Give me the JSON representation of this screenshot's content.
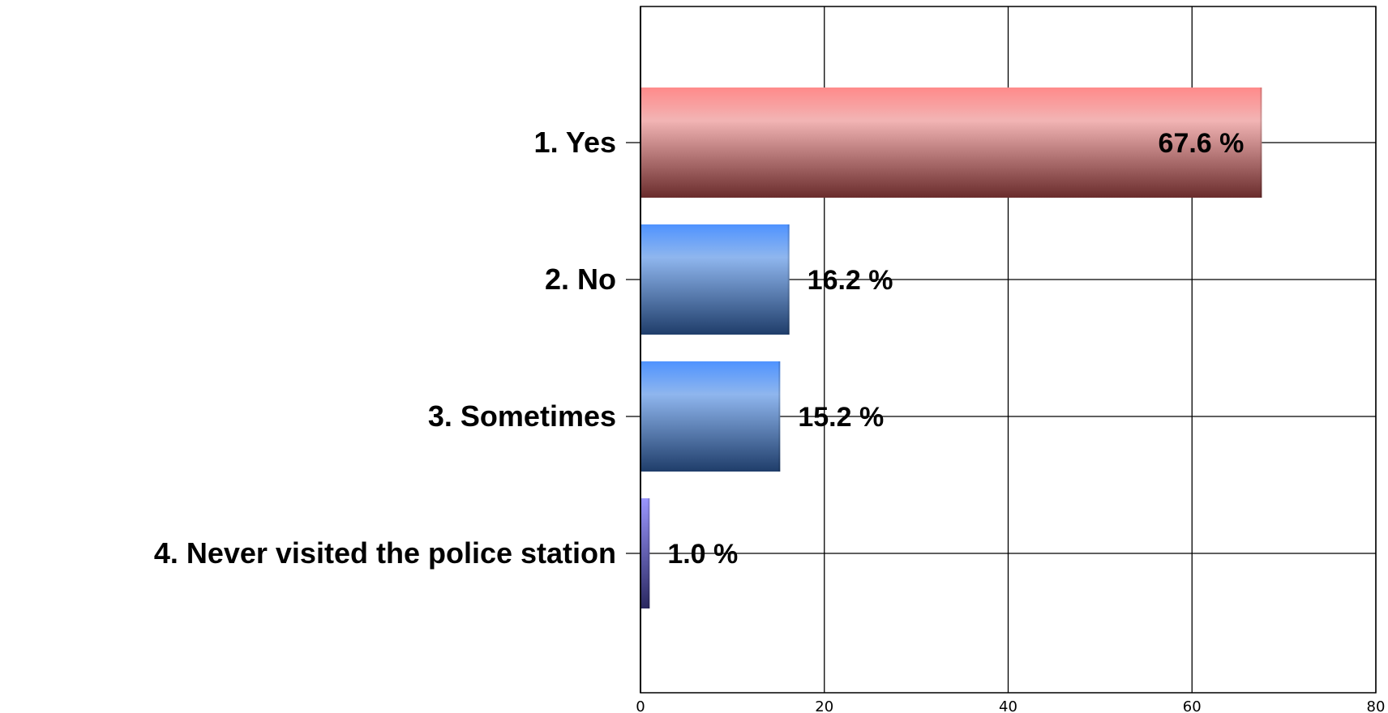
{
  "chart_data": {
    "type": "bar",
    "orientation": "horizontal",
    "categories": [
      "1. Yes",
      "2. No",
      "3. Sometimes",
      "4. Never visited the police station"
    ],
    "values": [
      67.6,
      16.2,
      15.2,
      1.0
    ],
    "value_labels": [
      "67.6 %",
      "16.2 %",
      "15.2 %",
      "1.0 %"
    ],
    "xlim": [
      0,
      80
    ],
    "xticks": [
      0,
      20,
      40,
      60,
      80
    ],
    "grid": true,
    "colors": {
      "bar_1_top": "#ff8a8a",
      "bar_1_mid": "#f2b4b4",
      "bar_1_bottom": "#6a2c2c",
      "bar_blue_top": "#4f93ff",
      "bar_blue_mid": "#8fb6ee",
      "bar_blue_bottom": "#1f3d6a",
      "bar_4_top": "#9a96ff",
      "bar_4_bottom": "#2a2860"
    }
  }
}
